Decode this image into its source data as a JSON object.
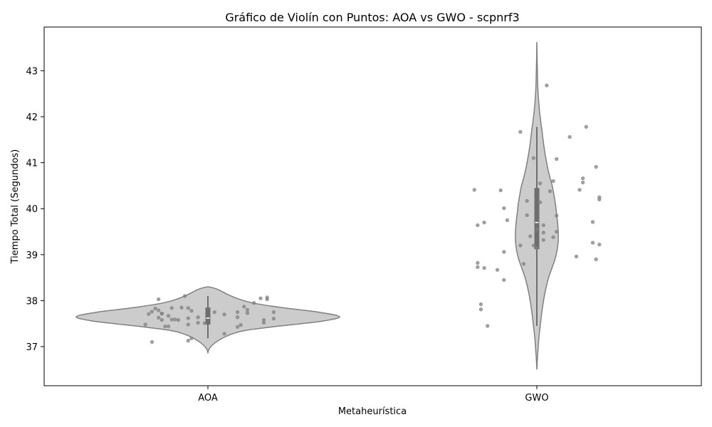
{
  "chart_data": {
    "type": "violin",
    "title": "Gráfico de Violín con Puntos: AOA vs GWO - scpnrf3",
    "xlabel": "Metaheurística",
    "ylabel": "Tiempo Total (Segundos)",
    "categories": [
      "AOA",
      "GWO"
    ],
    "ylim": [
      36.15,
      43.95
    ],
    "yticks": [
      37,
      38,
      39,
      40,
      41,
      42,
      43
    ],
    "grid": false,
    "colors": {
      "violin_fill": "#cccccc",
      "violin_edge": "#808080",
      "box": "#6e6e6e",
      "median": "#ffffff",
      "points": "#808080"
    },
    "series": [
      {
        "category": "AOA",
        "stats": {
          "min": 37.18,
          "q1": 37.48,
          "median": 37.62,
          "q3": 37.85,
          "max": 38.1
        },
        "density": {
          "y": [
            36.87,
            36.95,
            37.05,
            37.15,
            37.25,
            37.35,
            37.45,
            37.55,
            37.65,
            37.75,
            37.85,
            37.95,
            38.05,
            38.15,
            38.25,
            38.3
          ],
          "w": [
            0,
            0.01,
            0.04,
            0.09,
            0.16,
            0.28,
            0.55,
            0.86,
            1.0,
            0.84,
            0.56,
            0.34,
            0.22,
            0.14,
            0.07,
            0
          ]
        },
        "points": [
          {
            "x": -0.17,
            "y": 37.76
          },
          {
            "x": -0.19,
            "y": 37.48
          },
          {
            "x": -0.18,
            "y": 37.71
          },
          {
            "x": -0.16,
            "y": 37.83
          },
          {
            "x": -0.15,
            "y": 38.03
          },
          {
            "x": -0.15,
            "y": 37.79
          },
          {
            "x": -0.14,
            "y": 37.58
          },
          {
            "x": -0.14,
            "y": 37.72
          },
          {
            "x": -0.13,
            "y": 37.44
          },
          {
            "x": -0.12,
            "y": 37.44
          },
          {
            "x": -0.12,
            "y": 37.67
          },
          {
            "x": -0.11,
            "y": 37.59
          },
          {
            "x": -0.11,
            "y": 37.84
          },
          {
            "x": -0.1,
            "y": 37.59
          },
          {
            "x": -0.09,
            "y": 37.58
          },
          {
            "x": -0.08,
            "y": 37.85
          },
          {
            "x": -0.07,
            "y": 38.1
          },
          {
            "x": -0.06,
            "y": 37.13
          },
          {
            "x": -0.06,
            "y": 37.48
          },
          {
            "x": -0.06,
            "y": 37.62
          },
          {
            "x": -0.06,
            "y": 37.84
          },
          {
            "x": -0.05,
            "y": 37.18
          },
          {
            "x": -0.05,
            "y": 37.78
          },
          {
            "x": -0.03,
            "y": 37.64
          },
          {
            "x": -0.03,
            "y": 37.52
          },
          {
            "x": -0.15,
            "y": 37.63
          },
          {
            "x": -0.17,
            "y": 37.1
          },
          {
            "x": -0.14,
            "y": 37.72
          },
          {
            "x": -0.01,
            "y": 37.51
          },
          {
            "x": 0.02,
            "y": 37.75
          },
          {
            "x": 0.05,
            "y": 37.28
          },
          {
            "x": 0.05,
            "y": 37.7
          },
          {
            "x": 0.09,
            "y": 37.75
          },
          {
            "x": 0.09,
            "y": 37.64
          },
          {
            "x": 0.09,
            "y": 37.43
          },
          {
            "x": 0.1,
            "y": 37.47
          },
          {
            "x": 0.11,
            "y": 37.87
          },
          {
            "x": 0.12,
            "y": 37.73
          },
          {
            "x": 0.12,
            "y": 37.8
          },
          {
            "x": 0.14,
            "y": 37.95
          },
          {
            "x": 0.16,
            "y": 38.05
          },
          {
            "x": 0.17,
            "y": 37.52
          },
          {
            "x": 0.17,
            "y": 37.58
          },
          {
            "x": 0.18,
            "y": 38.03
          },
          {
            "x": 0.18,
            "y": 38.07
          },
          {
            "x": 0.2,
            "y": 37.61
          },
          {
            "x": 0.2,
            "y": 37.75
          }
        ]
      },
      {
        "category": "GWO",
        "stats": {
          "min": 37.45,
          "q1": 39.12,
          "median": 39.7,
          "q3": 40.45,
          "max": 41.78
        },
        "density": {
          "y": [
            36.5,
            36.7,
            36.9,
            37.1,
            37.3,
            37.5,
            37.7,
            37.9,
            38.1,
            38.3,
            38.5,
            38.7,
            38.9,
            39.1,
            39.3,
            39.5,
            39.7,
            39.9,
            40.1,
            40.3,
            40.5,
            40.7,
            40.9,
            41.1,
            41.3,
            41.5,
            41.7,
            41.9,
            42.1,
            42.3,
            42.5,
            42.7,
            42.9,
            43.1,
            43.3,
            43.62
          ],
          "w": [
            0,
            0.02,
            0.05,
            0.08,
            0.12,
            0.17,
            0.22,
            0.28,
            0.35,
            0.44,
            0.55,
            0.7,
            0.85,
            0.95,
            1.0,
            1.0,
            0.97,
            0.92,
            0.87,
            0.8,
            0.72,
            0.6,
            0.5,
            0.42,
            0.35,
            0.29,
            0.24,
            0.18,
            0.13,
            0.09,
            0.06,
            0.04,
            0.03,
            0.02,
            0.01,
            0
          ]
        },
        "points": [
          {
            "x": -0.19,
            "y": 40.41
          },
          {
            "x": -0.18,
            "y": 39.64
          },
          {
            "x": -0.18,
            "y": 38.82
          },
          {
            "x": -0.18,
            "y": 38.73
          },
          {
            "x": -0.17,
            "y": 37.81
          },
          {
            "x": -0.17,
            "y": 37.92
          },
          {
            "x": -0.16,
            "y": 38.71
          },
          {
            "x": -0.16,
            "y": 39.7
          },
          {
            "x": -0.15,
            "y": 37.45
          },
          {
            "x": -0.12,
            "y": 38.67
          },
          {
            "x": -0.11,
            "y": 40.4
          },
          {
            "x": -0.1,
            "y": 38.45
          },
          {
            "x": -0.1,
            "y": 40.01
          },
          {
            "x": -0.1,
            "y": 39.06
          },
          {
            "x": -0.09,
            "y": 39.75
          },
          {
            "x": -0.05,
            "y": 41.67
          },
          {
            "x": -0.05,
            "y": 39.2
          },
          {
            "x": -0.04,
            "y": 38.8
          },
          {
            "x": -0.03,
            "y": 39.86
          },
          {
            "x": -0.03,
            "y": 40.17
          },
          {
            "x": -0.02,
            "y": 39.4
          },
          {
            "x": -0.01,
            "y": 41.1
          },
          {
            "x": -0.01,
            "y": 39.2
          },
          {
            "x": 0.0,
            "y": 39.55
          },
          {
            "x": 0.0,
            "y": 39.14
          },
          {
            "x": 0.01,
            "y": 40.55
          },
          {
            "x": 0.01,
            "y": 40.14
          },
          {
            "x": 0.02,
            "y": 39.48
          },
          {
            "x": 0.02,
            "y": 39.32
          },
          {
            "x": 0.02,
            "y": 39.64
          },
          {
            "x": 0.03,
            "y": 42.68
          },
          {
            "x": 0.04,
            "y": 40.38
          },
          {
            "x": 0.05,
            "y": 40.6
          },
          {
            "x": 0.05,
            "y": 39.38
          },
          {
            "x": 0.06,
            "y": 41.08
          },
          {
            "x": 0.06,
            "y": 39.5
          },
          {
            "x": 0.06,
            "y": 39.85
          },
          {
            "x": 0.1,
            "y": 41.56
          },
          {
            "x": 0.12,
            "y": 38.96
          },
          {
            "x": 0.13,
            "y": 40.41
          },
          {
            "x": 0.14,
            "y": 40.66
          },
          {
            "x": 0.14,
            "y": 40.57
          },
          {
            "x": 0.15,
            "y": 41.78
          },
          {
            "x": 0.17,
            "y": 39.26
          },
          {
            "x": 0.17,
            "y": 39.71
          },
          {
            "x": 0.18,
            "y": 38.9
          },
          {
            "x": 0.18,
            "y": 40.91
          },
          {
            "x": 0.19,
            "y": 39.22
          },
          {
            "x": 0.19,
            "y": 40.2
          },
          {
            "x": 0.19,
            "y": 40.25
          }
        ]
      }
    ]
  }
}
